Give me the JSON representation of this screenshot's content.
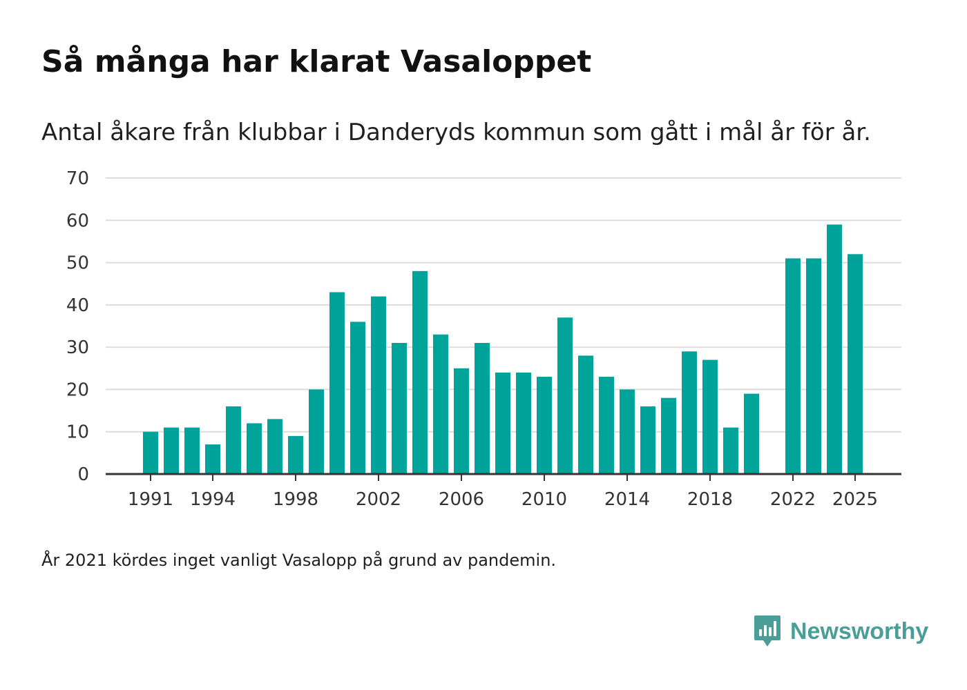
{
  "title": "Så många har klarat Vasaloppet",
  "subtitle": "Antal åkare från klubbar i Danderyds kommun som gått i mål år för år.",
  "footnote": "År 2021 kördes inget vanligt Vasalopp på grund av pandemin.",
  "brand": {
    "name": "Newsworthy",
    "icon": "bar-chart-logo-icon",
    "color": "#4a9e97"
  },
  "colors": {
    "bar": "#00a39a",
    "grid": "#dcdcdc",
    "axis": "#333333"
  },
  "chart_data": {
    "type": "bar",
    "title": "Så många har klarat Vasaloppet",
    "xlabel": "",
    "ylabel": "",
    "ylim": [
      0,
      70
    ],
    "yticks": [
      0,
      10,
      20,
      30,
      40,
      50,
      60,
      70
    ],
    "xticks": [
      1991,
      1994,
      1998,
      2002,
      2006,
      2010,
      2014,
      2018,
      2022,
      2025
    ],
    "grid": true,
    "legend": "none",
    "categories": [
      1991,
      1992,
      1993,
      1994,
      1995,
      1996,
      1997,
      1998,
      1999,
      2000,
      2001,
      2002,
      2003,
      2004,
      2005,
      2006,
      2007,
      2008,
      2009,
      2010,
      2011,
      2012,
      2013,
      2014,
      2015,
      2016,
      2017,
      2018,
      2019,
      2020,
      2021,
      2022,
      2023,
      2024,
      2025
    ],
    "values": [
      10,
      11,
      11,
      7,
      16,
      12,
      13,
      9,
      20,
      43,
      36,
      42,
      31,
      48,
      33,
      25,
      31,
      24,
      24,
      23,
      37,
      28,
      23,
      20,
      16,
      18,
      29,
      27,
      11,
      19,
      null,
      51,
      51,
      59,
      52
    ]
  }
}
